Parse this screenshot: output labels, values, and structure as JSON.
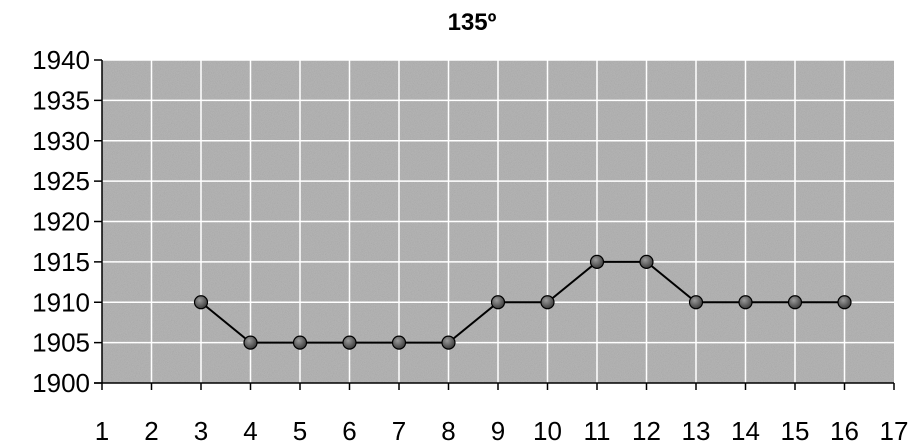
{
  "chart_data": {
    "type": "line",
    "title": "135º",
    "xlabel": "",
    "ylabel": "",
    "x": [
      3,
      4,
      5,
      6,
      7,
      8,
      9,
      10,
      11,
      12,
      13,
      14,
      15,
      16
    ],
    "values": [
      1910,
      1905,
      1905,
      1905,
      1905,
      1905,
      1910,
      1910,
      1915,
      1915,
      1910,
      1910,
      1910,
      1910
    ],
    "xticks": [
      "1",
      "2",
      "3",
      "4",
      "5",
      "6",
      "7",
      "8",
      "9",
      "10",
      "11",
      "12",
      "13",
      "14",
      "15",
      "16",
      "17"
    ],
    "yticks": [
      "1900",
      "1905",
      "1910",
      "1915",
      "1920",
      "1925",
      "1930",
      "1935",
      "1940"
    ],
    "xlim": [
      1,
      17
    ],
    "ylim": [
      1900,
      1940
    ],
    "grid": true,
    "colors": {
      "plot_background": "#b9b9b9",
      "grid": "#ffffff",
      "line": "#000000",
      "marker": "#666666"
    }
  }
}
